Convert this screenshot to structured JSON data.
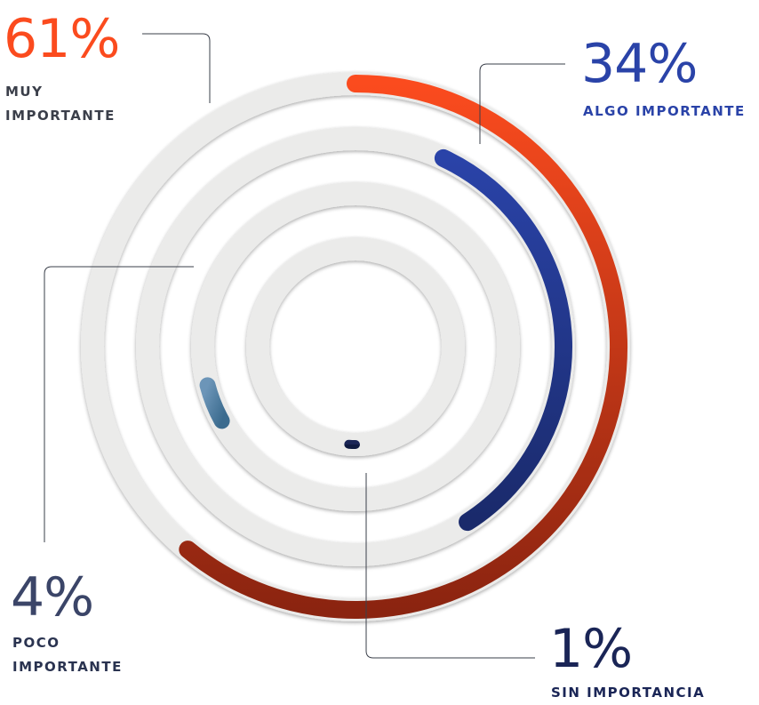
{
  "chart_data": {
    "type": "radial-bar",
    "value_unit": "%",
    "series": [
      {
        "name": "MUY IMPORTANTE",
        "label_lines": [
          "MUY",
          "IMPORTANTE"
        ],
        "value": 61,
        "display": "61%",
        "color": "#fb4b1e",
        "color_end": "#8b2410"
      },
      {
        "name": "ALGO IMPORTANTE",
        "label_lines": [
          "ALGO IMPORTANTE"
        ],
        "value": 34,
        "display": "34%",
        "color": "#2a43a8",
        "color_end": "#1a2a6b"
      },
      {
        "name": "POCO IMPORTANTE",
        "label_lines": [
          "POCO",
          "IMPORTANTE"
        ],
        "value": 4,
        "display": "4%",
        "color": "#6c95b8",
        "color_end": "#3b6b8e"
      },
      {
        "name": "SIN IMPORTANCIA",
        "label_lines": [
          "SIN IMPORTANCIA"
        ],
        "value": 1,
        "display": "1%",
        "color": "#1a2556",
        "color_end": "#0f1a40"
      }
    ],
    "track_color": "#ebebea",
    "line_color": "#3a3f4a"
  }
}
